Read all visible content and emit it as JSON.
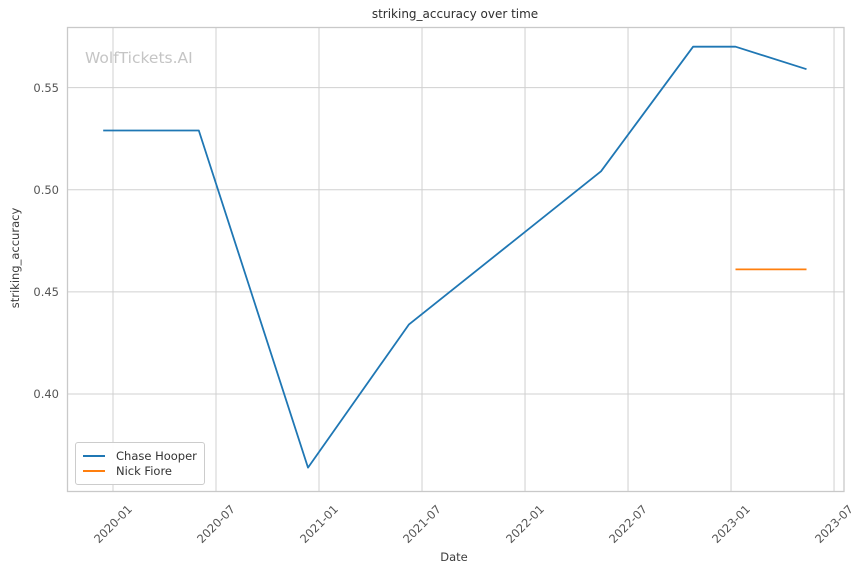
{
  "watermark": "WolfTickets.AI",
  "colors": {
    "chase_hooper_line": "#1f77b4",
    "nick_fiore_line": "#ff7f0e",
    "grid": "#d0d0d0",
    "spine": "#c9c9c9",
    "tick_text": "#555555",
    "axis_label_text": "#3d3d3d",
    "title_text": "#2e2e2e",
    "watermark_text": "#c5c5c5",
    "legend_border": "#cccccc"
  },
  "chart_data": {
    "type": "line",
    "title": "striking_accuracy over time",
    "xlabel": "Date",
    "ylabel": "striking_accuracy",
    "grid": true,
    "legend_position": "lower left",
    "xlim_months_from_2020_01": [
      -2.65,
      42.58
    ],
    "ylim": [
      0.3523,
      0.5794
    ],
    "x_ticks": [
      {
        "date": "2020-01",
        "label": "2020-01"
      },
      {
        "date": "2020-07",
        "label": "2020-07"
      },
      {
        "date": "2021-01",
        "label": "2021-01"
      },
      {
        "date": "2021-07",
        "label": "2021-07"
      },
      {
        "date": "2022-01",
        "label": "2022-01"
      },
      {
        "date": "2022-07",
        "label": "2022-07"
      },
      {
        "date": "2023-01",
        "label": "2023-01"
      },
      {
        "date": "2023-07",
        "label": "2023-07"
      }
    ],
    "y_ticks": [
      {
        "value": 0.4,
        "label": "0.40"
      },
      {
        "value": 0.45,
        "label": "0.45"
      },
      {
        "value": 0.5,
        "label": "0.50"
      },
      {
        "value": 0.55,
        "label": "0.55"
      }
    ],
    "series": [
      {
        "name": "Chase Hooper",
        "color": "#1f77b4",
        "points": [
          {
            "date": "2019-12-14",
            "value": 0.529
          },
          {
            "date": "2020-06-01",
            "value": 0.529
          },
          {
            "date": "2020-12-12",
            "value": 0.364
          },
          {
            "date": "2021-06-08",
            "value": 0.434
          },
          {
            "date": "2022-05-14",
            "value": 0.509
          },
          {
            "date": "2022-10-25",
            "value": 0.57
          },
          {
            "date": "2023-01-09",
            "value": 0.57
          },
          {
            "date": "2023-05-13",
            "value": 0.559
          }
        ]
      },
      {
        "name": "Nick Fiore",
        "color": "#ff7f0e",
        "points": [
          {
            "date": "2023-01-09",
            "value": 0.461
          },
          {
            "date": "2023-05-13",
            "value": 0.461
          }
        ]
      }
    ]
  }
}
